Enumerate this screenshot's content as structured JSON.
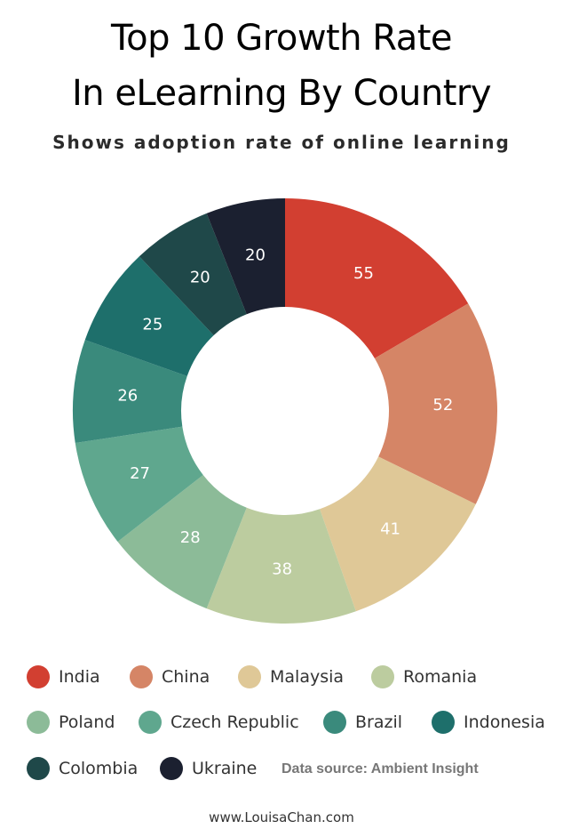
{
  "chart_data": {
    "type": "pie",
    "title_line1": "Top 10 Growth Rate",
    "title_line2": "In eLearning By Country",
    "subtitle": "Shows adoption rate of online learning",
    "categories": [
      "India",
      "China",
      "Malaysia",
      "Romania",
      "Poland",
      "Czech Republic",
      "Brazil",
      "Indonesia",
      "Colombia",
      "Ukraine"
    ],
    "values": [
      55,
      52,
      41,
      38,
      28,
      27,
      26,
      25,
      20,
      20
    ],
    "colors": [
      "#d23f31",
      "#d58566",
      "#dfc897",
      "#bccc9f",
      "#8cbb98",
      "#5fa78e",
      "#3a8a7c",
      "#1e6f6b",
      "#1f4849",
      "#1b2030"
    ],
    "donut": true,
    "legend_position": "bottom",
    "source": "Data source: Ambient Insight",
    "footer": "www.LouisaChan.com"
  }
}
